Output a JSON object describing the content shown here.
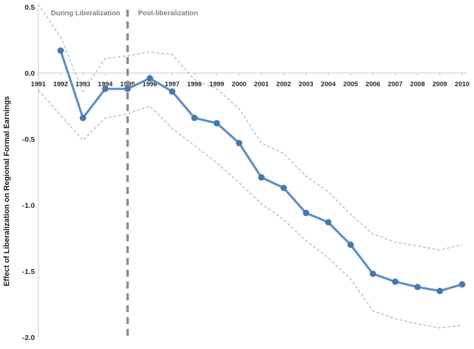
{
  "chart_data": {
    "type": "line",
    "title": "",
    "xlabel": "",
    "ylabel": "Effect of Liberalization on Regional Formal Earnings",
    "ylim": [
      -2.0,
      0.5
    ],
    "grid": "off",
    "legend": "none",
    "x_ticks": [
      "1991",
      "1992",
      "1993",
      "1994",
      "1995",
      "1996",
      "1997",
      "1998",
      "1999",
      "2000",
      "2001",
      "2002",
      "2003",
      "2004",
      "2005",
      "2006",
      "2007",
      "2008",
      "2009",
      "2010"
    ],
    "y_tick_labels": [
      "0.5",
      "0.0",
      "-0.5",
      "-1.0",
      "-1.5",
      "-2.0"
    ],
    "y_tick_values": [
      0.5,
      0.0,
      -0.5,
      -1.0,
      -1.5,
      -2.0
    ],
    "annotations": {
      "during_label": "During Liberalization",
      "post_label": "Post-liberalization",
      "divider_year": 1995
    },
    "series": [
      {
        "name": "point-estimate",
        "style": "solid-markers",
        "x": [
          1992,
          1993,
          1994,
          1995,
          1996,
          1997,
          1998,
          1999,
          2000,
          2001,
          2002,
          2003,
          2004,
          2005,
          2006,
          2007,
          2008,
          2009,
          2010
        ],
        "values": [
          0.17,
          -0.34,
          -0.12,
          -0.12,
          -0.04,
          -0.14,
          -0.34,
          -0.38,
          -0.53,
          -0.79,
          -0.87,
          -1.06,
          -1.13,
          -1.3,
          -1.52,
          -1.58,
          -1.62,
          -1.65,
          -1.6
        ]
      },
      {
        "name": "ci-upper",
        "style": "dashed",
        "x": [
          1991,
          1992,
          1993,
          1994,
          1995,
          1996,
          1997,
          1998,
          1999,
          2000,
          2001,
          2002,
          2003,
          2004,
          2005,
          2006,
          2007,
          2008,
          2009,
          2010
        ],
        "values": [
          0.52,
          0.27,
          -0.14,
          0.11,
          0.13,
          0.16,
          0.14,
          -0.05,
          -0.12,
          -0.27,
          -0.53,
          -0.61,
          -0.78,
          -0.9,
          -1.07,
          -1.22,
          -1.28,
          -1.31,
          -1.34,
          -1.3
        ]
      },
      {
        "name": "ci-lower",
        "style": "dashed",
        "x": [
          1991,
          1992,
          1993,
          1994,
          1995,
          1996,
          1997,
          1998,
          1999,
          2000,
          2001,
          2002,
          2003,
          2004,
          2005,
          2006,
          2007,
          2008,
          2009,
          2010
        ],
        "values": [
          -0.13,
          -0.32,
          -0.51,
          -0.34,
          -0.31,
          -0.25,
          -0.42,
          -0.55,
          -0.68,
          -0.83,
          -0.99,
          -1.11,
          -1.27,
          -1.4,
          -1.56,
          -1.8,
          -1.86,
          -1.9,
          -1.93,
          -1.91
        ]
      }
    ],
    "colors": {
      "line": "#5b8ec4",
      "marker": "#4678ad",
      "band": "#9ab7d9",
      "divider": "#8c8c8c",
      "axis": "#d3d3d3",
      "tick": "#bfbfbf",
      "tick_label": "#262626",
      "annotation": "#808080",
      "background": "#ffffff"
    }
  }
}
